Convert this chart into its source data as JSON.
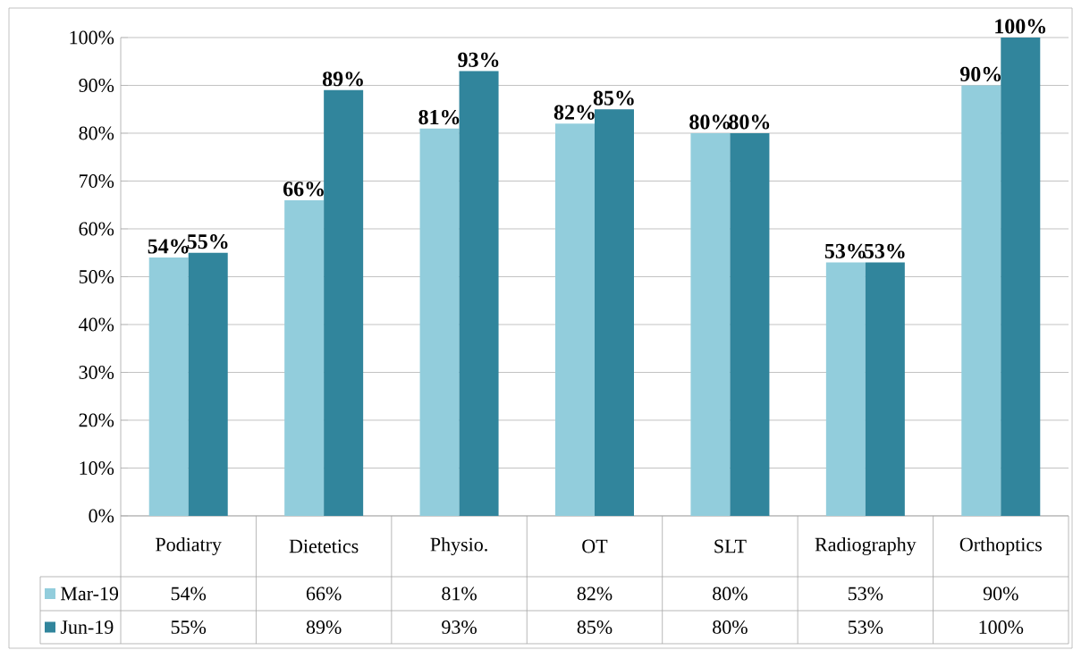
{
  "chart_data": {
    "type": "bar",
    "categories": [
      "Podiatry",
      "Dietetics",
      "Physio.",
      "OT",
      "SLT",
      "Radiography",
      "Orthoptics"
    ],
    "series": [
      {
        "name": "Mar-19",
        "color": "#92cddc",
        "values": [
          54,
          66,
          81,
          82,
          80,
          53,
          90
        ],
        "value_labels": [
          "54%",
          "66%",
          "81%",
          "82%",
          "80%",
          "53%",
          "90%"
        ]
      },
      {
        "name": "Jun-19",
        "color": "#31859c",
        "values": [
          55,
          89,
          93,
          85,
          80,
          53,
          100
        ],
        "value_labels": [
          "55%",
          "89%",
          "93%",
          "85%",
          "80%",
          "53%",
          "100%"
        ]
      }
    ],
    "ylim": [
      0,
      100
    ],
    "yticks": [
      {
        "value": 0,
        "label": "0%"
      },
      {
        "value": 10,
        "label": "10%"
      },
      {
        "value": 20,
        "label": "20%"
      },
      {
        "value": 30,
        "label": "30%"
      },
      {
        "value": 40,
        "label": "40%"
      },
      {
        "value": 50,
        "label": "50%"
      },
      {
        "value": 60,
        "label": "60%"
      },
      {
        "value": 70,
        "label": "70%"
      },
      {
        "value": 80,
        "label": "80%"
      },
      {
        "value": 90,
        "label": "90%"
      },
      {
        "value": 100,
        "label": "100%"
      }
    ],
    "grid": "y",
    "legend": "bottom left"
  }
}
